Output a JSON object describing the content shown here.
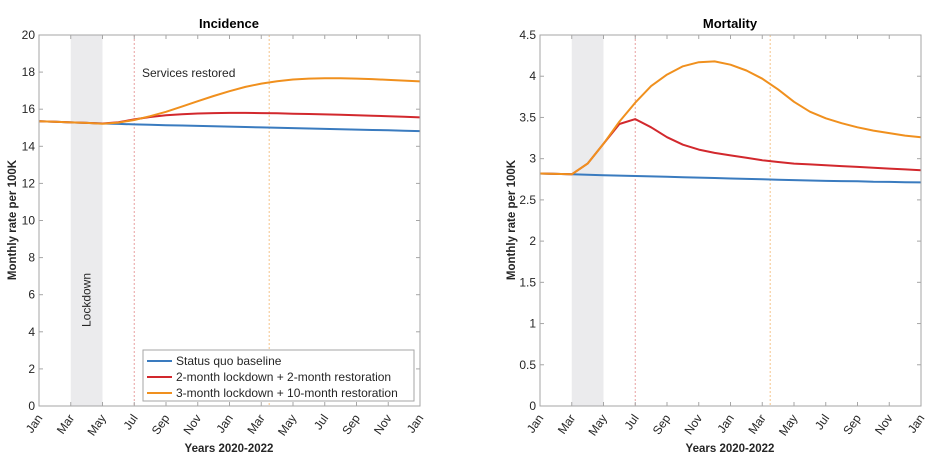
{
  "chart_data": [
    {
      "type": "line",
      "title": "Incidence",
      "xlabel": "Years 2020-2022",
      "ylabel": "Monthly rate per 100K",
      "ylim": [
        0,
        20
      ],
      "yticks": [
        "0",
        "2",
        "4",
        "6",
        "8",
        "10",
        "12",
        "14",
        "16",
        "18",
        "20"
      ],
      "xlim_months": [
        0,
        24
      ],
      "xtick_labels": [
        "Jan",
        "Mar",
        "May",
        "Jul",
        "Sep",
        "Nov",
        "Jan",
        "Mar",
        "May",
        "Jul",
        "Sep",
        "Nov",
        "Jan"
      ],
      "grid": false,
      "shaded_region": {
        "label": "Lockdown",
        "from_month": 2,
        "to_month": 4
      },
      "vlines": [
        {
          "month": 6,
          "color": "#e8a0a0"
        },
        {
          "month": 14.5,
          "color": "#f5c48a"
        }
      ],
      "annotation": "Services restored",
      "legend_position": "bottom-right",
      "x_months": [
        0,
        1,
        2,
        3,
        4,
        5,
        6,
        7,
        8,
        9,
        10,
        11,
        12,
        13,
        14,
        15,
        16,
        17,
        18,
        19,
        20,
        21,
        22,
        23,
        24
      ],
      "series": [
        {
          "name": "Status quo baseline",
          "color": "#3a7bbf",
          "values": [
            15.35,
            15.32,
            15.29,
            15.26,
            15.23,
            15.21,
            15.18,
            15.16,
            15.14,
            15.12,
            15.1,
            15.08,
            15.06,
            15.04,
            15.02,
            15.0,
            14.98,
            14.96,
            14.94,
            14.92,
            14.9,
            14.88,
            14.86,
            14.84,
            14.82
          ]
        },
        {
          "name": "2-month lockdown + 2-month restoration",
          "color": "#d2282d",
          "values": [
            15.35,
            15.32,
            15.29,
            15.26,
            15.23,
            15.3,
            15.45,
            15.58,
            15.67,
            15.73,
            15.77,
            15.79,
            15.8,
            15.8,
            15.79,
            15.78,
            15.76,
            15.74,
            15.72,
            15.7,
            15.67,
            15.65,
            15.62,
            15.59,
            15.56
          ]
        },
        {
          "name": "3-month lockdown + 10-month restoration",
          "color": "#f0901e",
          "values": [
            15.35,
            15.32,
            15.29,
            15.26,
            15.22,
            15.28,
            15.42,
            15.62,
            15.86,
            16.14,
            16.43,
            16.71,
            16.97,
            17.2,
            17.38,
            17.51,
            17.6,
            17.65,
            17.67,
            17.67,
            17.65,
            17.62,
            17.58,
            17.54,
            17.5
          ]
        }
      ]
    },
    {
      "type": "line",
      "title": "Mortality",
      "xlabel": "Years 2020-2022",
      "ylabel": "Monthly rate per 100K",
      "ylim": [
        0,
        4.5
      ],
      "yticks": [
        "0",
        "0.5",
        "1",
        "1.5",
        "2",
        "2.5",
        "3",
        "3.5",
        "4",
        "4.5"
      ],
      "xlim_months": [
        0,
        24
      ],
      "xtick_labels": [
        "Jan",
        "Mar",
        "May",
        "Jul",
        "Sep",
        "Nov",
        "Jan",
        "Mar",
        "May",
        "Jul",
        "Sep",
        "Nov",
        "Jan"
      ],
      "grid": false,
      "shaded_region": {
        "from_month": 2,
        "to_month": 4
      },
      "vlines": [
        {
          "month": 6,
          "color": "#e8a0a0"
        },
        {
          "month": 14.5,
          "color": "#f5c48a"
        }
      ],
      "x_months": [
        0,
        1,
        2,
        3,
        4,
        5,
        6,
        7,
        8,
        9,
        10,
        11,
        12,
        13,
        14,
        15,
        16,
        17,
        18,
        19,
        20,
        21,
        22,
        23,
        24
      ],
      "series": [
        {
          "name": "Status quo baseline",
          "color": "#3a7bbf",
          "values": [
            2.82,
            2.815,
            2.81,
            2.805,
            2.8,
            2.795,
            2.79,
            2.785,
            2.78,
            2.775,
            2.77,
            2.765,
            2.76,
            2.755,
            2.75,
            2.745,
            2.74,
            2.735,
            2.73,
            2.728,
            2.725,
            2.72,
            2.718,
            2.715,
            2.712
          ]
        },
        {
          "name": "2-month lockdown + 2-month restoration",
          "color": "#d2282d",
          "values": [
            2.82,
            2.815,
            2.81,
            2.94,
            3.18,
            3.42,
            3.48,
            3.38,
            3.26,
            3.17,
            3.11,
            3.07,
            3.04,
            3.01,
            2.98,
            2.96,
            2.94,
            2.93,
            2.92,
            2.91,
            2.9,
            2.89,
            2.88,
            2.87,
            2.86
          ]
        },
        {
          "name": "3-month lockdown + 10-month restoration",
          "color": "#f0901e",
          "values": [
            2.82,
            2.815,
            2.81,
            2.94,
            3.18,
            3.45,
            3.68,
            3.88,
            4.02,
            4.12,
            4.17,
            4.18,
            4.14,
            4.07,
            3.97,
            3.84,
            3.69,
            3.57,
            3.49,
            3.43,
            3.38,
            3.34,
            3.31,
            3.28,
            3.26
          ]
        }
      ]
    }
  ]
}
